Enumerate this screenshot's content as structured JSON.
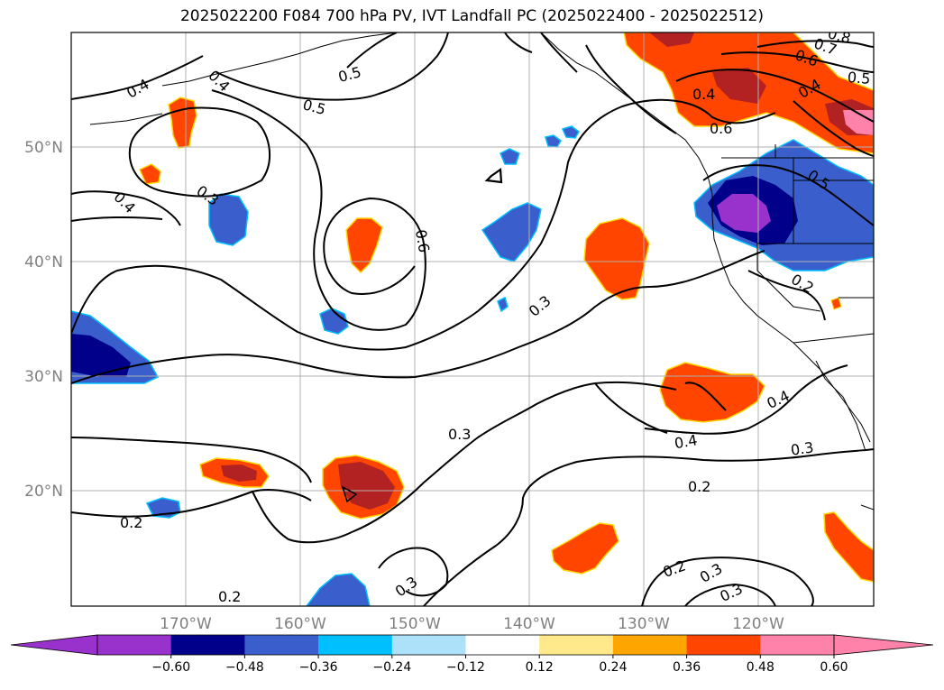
{
  "title": "2025022200 F084 700 hPa PV, IVT Landfall PC (2025022400 - 2025022512)",
  "latitude_labels": [
    "50°N",
    "40°N",
    "30°N",
    "20°N"
  ],
  "longitude_labels": [
    "170°W",
    "160°W",
    "150°W",
    "140°W",
    "130°W",
    "120°W"
  ],
  "contour_labels": [
    "0.4",
    "0.4",
    "0.5",
    "0.5",
    "0.6",
    "0.7",
    "0.8",
    "0.6",
    "0.5",
    "0.4",
    "0.5",
    "0.6",
    "0.4",
    "0.3",
    "0.3",
    "0.2",
    "0.3",
    "0.4",
    "0.4",
    "0.3",
    "0.2",
    "0.3",
    "0.2",
    "0.2",
    "0.3",
    "0.2",
    "0.3",
    "0.4"
  ],
  "colorbar": {
    "ticks": [
      "−0.60",
      "−0.48",
      "−0.36",
      "−0.24",
      "−0.12",
      "0.12",
      "0.24",
      "0.36",
      "0.48",
      "0.60"
    ],
    "colors": [
      "#9932CC",
      "#00008B",
      "#3A5FCD",
      "#00BFFF",
      "#ADE1FA",
      "#FFFFFF",
      "#FFE98A",
      "#FFA500",
      "#FF4500",
      "#B22222",
      "#FF82AB",
      "#FF82AB"
    ],
    "extend": "both"
  },
  "field_colors": {
    "strong_negative": "#9932CC",
    "negative": "#3A5FCD",
    "dark_negative": "#00008B",
    "positive": "#FF4500",
    "strong_positive": "#B22222",
    "max_positive": "#FF82AB",
    "edge_yellow": "#FFD700",
    "edge_cyan": "#00BFFF"
  }
}
